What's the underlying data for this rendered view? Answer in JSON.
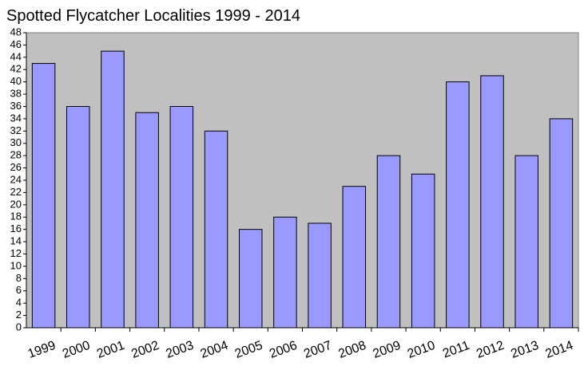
{
  "chart_data": {
    "type": "bar",
    "title": "Spotted Flycatcher  Localities 1999 - 2014",
    "categories": [
      "1999",
      "2000",
      "2001",
      "2002",
      "2003",
      "2004",
      "2005",
      "2006",
      "2007",
      "2008",
      "2009",
      "2010",
      "2011",
      "2012",
      "2013",
      "2014"
    ],
    "values": [
      43,
      36,
      45,
      35,
      36,
      32,
      16,
      18,
      17,
      23,
      28,
      25,
      40,
      41,
      28,
      34
    ],
    "color": "#9999ff",
    "plot_background": "#c0c0c0",
    "ylim": [
      0,
      48
    ],
    "yticks": [
      0,
      2,
      4,
      6,
      8,
      10,
      12,
      14,
      16,
      18,
      20,
      22,
      24,
      26,
      28,
      30,
      32,
      34,
      36,
      38,
      40,
      42,
      44,
      46,
      48
    ],
    "grid": false
  }
}
